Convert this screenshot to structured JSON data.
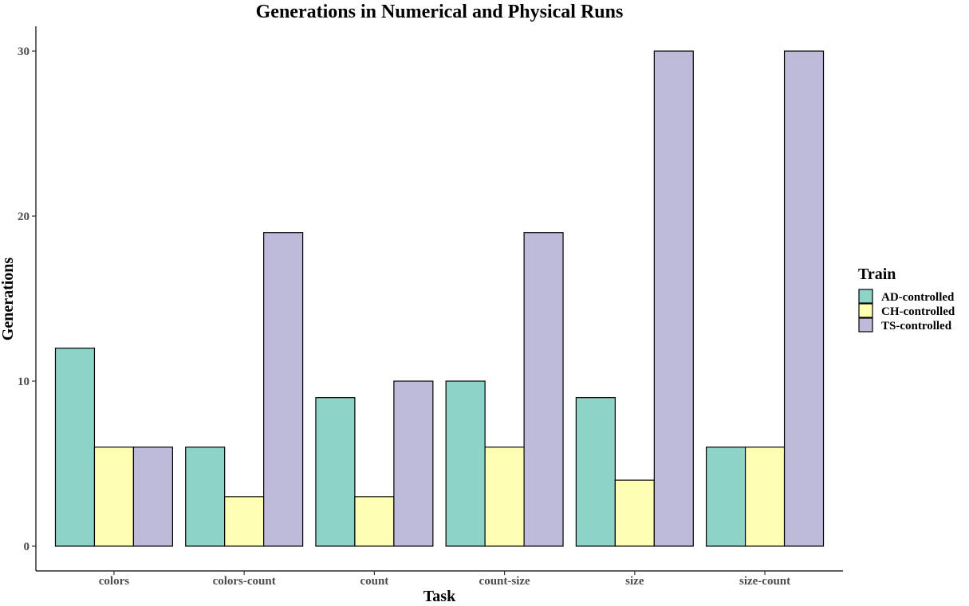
{
  "chart_data": {
    "type": "bar",
    "title": "Generations in Numerical and Physical Runs",
    "xlabel": "Task",
    "ylabel": "Generations",
    "categories": [
      "colors",
      "colors-count",
      "count",
      "count-size",
      "size",
      "size-count"
    ],
    "series": [
      {
        "name": "AD-controlled",
        "color": "#8DD3C7",
        "values": [
          12,
          6,
          9,
          10,
          9,
          6
        ]
      },
      {
        "name": "CH-controlled",
        "color": "#FFFFB3",
        "values": [
          6,
          3,
          3,
          6,
          4,
          6
        ]
      },
      {
        "name": "TS-controlled",
        "color": "#BEBADA",
        "values": [
          6,
          19,
          10,
          19,
          30,
          30
        ]
      }
    ],
    "yticks": [
      0,
      10,
      20,
      30
    ],
    "ylim": [
      -1.5,
      31.5
    ],
    "grid": false,
    "legend": {
      "title": "Train",
      "position": "right"
    }
  }
}
